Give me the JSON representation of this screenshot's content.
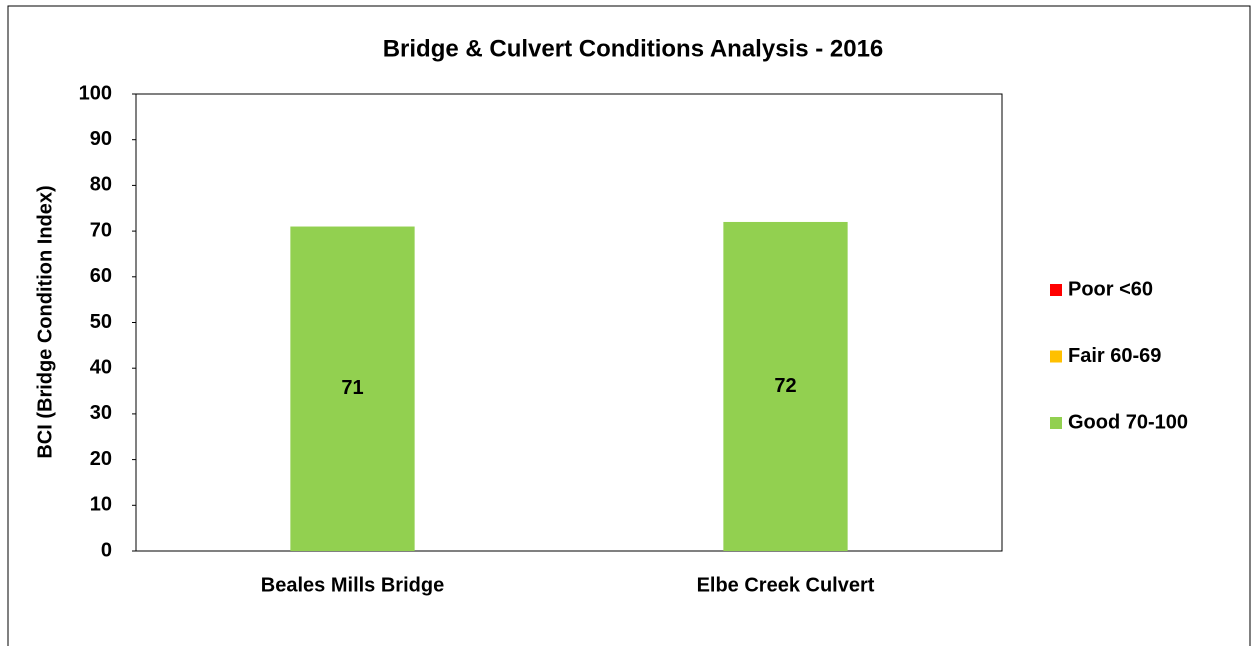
{
  "chart_data": {
    "type": "bar",
    "title": "Bridge & Culvert Conditions Analysis - 2016",
    "y_label": "BCI  (Bridge Condition Index)",
    "categories": [
      "Beales Mills Bridge",
      "Elbe Creek Culvert"
    ],
    "series": [
      {
        "name": "Poor <60",
        "color": "#ff0000",
        "values": [
          null,
          null
        ]
      },
      {
        "name": "Fair 60-69",
        "color": "#ffc000",
        "values": [
          null,
          null
        ]
      },
      {
        "name": "Good 70-100",
        "color": "#92d050",
        "values": [
          71,
          72
        ]
      }
    ],
    "ylim": [
      0,
      100
    ],
    "yticks": [
      0,
      10,
      20,
      30,
      40,
      50,
      60,
      70,
      80,
      90,
      100
    ],
    "grid": false,
    "legend": "right",
    "stacked": true,
    "data_labels": true
  }
}
